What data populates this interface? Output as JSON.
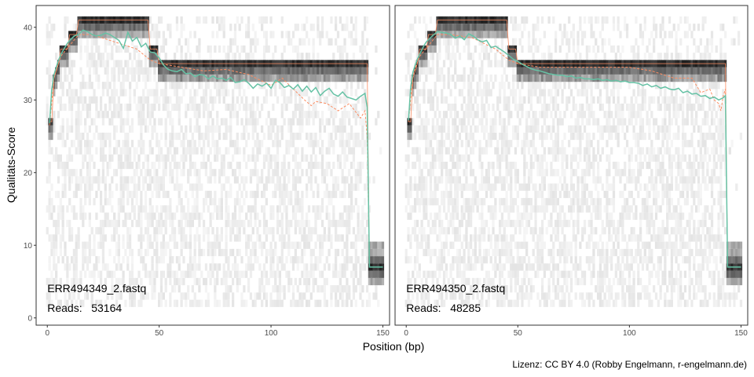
{
  "chart_data": {
    "type": "heatmap",
    "xlabel": "Position (bp)",
    "ylabel": "Qualitäts-Score",
    "xlim": [
      -5,
      153
    ],
    "ylim": [
      -1,
      43
    ],
    "x_ticks": [
      0,
      50,
      100,
      150
    ],
    "y_ticks": [
      0,
      10,
      20,
      30,
      40
    ],
    "grid": false,
    "caption": "Lizenz: CC BY 4.0 (Robby Engelmann, r-engelmann.de)",
    "colors": {
      "mean": "#66c2a5",
      "quantile": "#fc8d62",
      "heat_high": "#1a1a1a",
      "heat_low": "#f2f2f2",
      "frame": "#333333"
    },
    "panels": [
      {
        "file": "ERR494349_2.fastq",
        "reads_label": "Reads:",
        "reads": "53164",
        "mean_quality": [
          [
            1,
            26.8
          ],
          [
            2,
            31.5
          ],
          [
            3,
            33.5
          ],
          [
            4,
            34.5
          ],
          [
            5,
            35.5
          ],
          [
            6,
            36.2
          ],
          [
            7,
            36.8
          ],
          [
            8,
            37.3
          ],
          [
            9,
            37.8
          ],
          [
            10,
            38.2
          ],
          [
            12,
            38.8
          ],
          [
            14,
            39.0
          ],
          [
            16,
            39.6
          ],
          [
            18,
            39.4
          ],
          [
            20,
            39.0
          ],
          [
            22,
            38.8
          ],
          [
            24,
            38.9
          ],
          [
            26,
            39.2
          ],
          [
            28,
            39.0
          ],
          [
            30,
            38.6
          ],
          [
            32,
            38.2
          ],
          [
            34,
            37.1
          ],
          [
            36,
            39.3
          ],
          [
            38,
            38.1
          ],
          [
            40,
            38.6
          ],
          [
            42,
            37.3
          ],
          [
            44,
            37.8
          ],
          [
            46,
            36.6
          ],
          [
            48,
            36.5
          ],
          [
            50,
            35.8
          ],
          [
            52,
            34.8
          ],
          [
            54,
            34.2
          ],
          [
            56,
            34.0
          ],
          [
            58,
            33.9
          ],
          [
            60,
            34.2
          ],
          [
            62,
            33.6
          ],
          [
            64,
            33.7
          ],
          [
            66,
            33.2
          ],
          [
            68,
            33.5
          ],
          [
            70,
            33.4
          ],
          [
            72,
            32.9
          ],
          [
            74,
            33.3
          ],
          [
            76,
            32.9
          ],
          [
            78,
            33.0
          ],
          [
            80,
            32.7
          ],
          [
            82,
            33.1
          ],
          [
            84,
            32.4
          ],
          [
            86,
            32.5
          ],
          [
            88,
            32.8
          ],
          [
            90,
            32.3
          ],
          [
            92,
            31.6
          ],
          [
            94,
            32.2
          ],
          [
            96,
            31.9
          ],
          [
            98,
            32.3
          ],
          [
            100,
            31.6
          ],
          [
            102,
            32.7
          ],
          [
            104,
            32.4
          ],
          [
            106,
            31.7
          ],
          [
            108,
            32.0
          ],
          [
            110,
            31.5
          ],
          [
            112,
            32.1
          ],
          [
            114,
            31.2
          ],
          [
            116,
            31.9
          ],
          [
            118,
            31.1
          ],
          [
            120,
            31.7
          ],
          [
            122,
            30.6
          ],
          [
            124,
            31.2
          ],
          [
            126,
            31.6
          ],
          [
            128,
            30.8
          ],
          [
            130,
            30.5
          ],
          [
            132,
            31.1
          ],
          [
            134,
            30.4
          ],
          [
            136,
            30.2
          ],
          [
            138,
            30.0
          ],
          [
            140,
            30.5
          ],
          [
            142,
            30.9
          ],
          [
            143,
            29.0
          ],
          [
            144,
            7.0
          ],
          [
            148,
            7.0
          ],
          [
            150,
            7.0
          ]
        ],
        "q25_quality": [
          [
            1,
            26.5
          ],
          [
            3,
            33.0
          ],
          [
            6,
            36.0
          ],
          [
            10,
            37.5
          ],
          [
            14,
            39.0
          ],
          [
            20,
            39.0
          ],
          [
            30,
            38.0
          ],
          [
            40,
            37.0
          ],
          [
            46,
            35.5
          ],
          [
            50,
            35.0
          ],
          [
            60,
            34.5
          ],
          [
            70,
            34.0
          ],
          [
            80,
            34.2
          ],
          [
            90,
            33.5
          ],
          [
            100,
            32.0
          ],
          [
            105,
            33.0
          ],
          [
            110,
            31.5
          ],
          [
            115,
            30.0
          ],
          [
            118,
            29.2
          ],
          [
            120,
            29.8
          ],
          [
            125,
            29.5
          ],
          [
            130,
            28.5
          ],
          [
            135,
            29.5
          ],
          [
            140,
            27.5
          ],
          [
            142,
            28.5
          ],
          [
            143,
            25.0
          ],
          [
            144,
            7.0
          ],
          [
            150,
            7.0
          ]
        ]
      },
      {
        "file": "ERR494350_2.fastq",
        "reads_label": "Reads:",
        "reads": "48285",
        "mean_quality": [
          [
            1,
            27.2
          ],
          [
            2,
            31.8
          ],
          [
            3,
            33.8
          ],
          [
            4,
            34.8
          ],
          [
            5,
            35.6
          ],
          [
            6,
            36.3
          ],
          [
            7,
            36.9
          ],
          [
            8,
            37.5
          ],
          [
            9,
            38.0
          ],
          [
            10,
            38.3
          ],
          [
            12,
            38.9
          ],
          [
            14,
            39.4
          ],
          [
            16,
            39.3
          ],
          [
            18,
            39.2
          ],
          [
            20,
            39.0
          ],
          [
            22,
            38.5
          ],
          [
            24,
            38.8
          ],
          [
            26,
            38.3
          ],
          [
            28,
            39.1
          ],
          [
            30,
            38.8
          ],
          [
            32,
            38.3
          ],
          [
            34,
            38.0
          ],
          [
            36,
            38.2
          ],
          [
            38,
            37.2
          ],
          [
            40,
            37.4
          ],
          [
            42,
            37.0
          ],
          [
            44,
            36.6
          ],
          [
            46,
            36.1
          ],
          [
            48,
            35.6
          ],
          [
            50,
            35.3
          ],
          [
            52,
            34.9
          ],
          [
            54,
            34.6
          ],
          [
            56,
            34.3
          ],
          [
            58,
            34.1
          ],
          [
            60,
            34.0
          ],
          [
            62,
            33.8
          ],
          [
            64,
            33.6
          ],
          [
            66,
            33.5
          ],
          [
            68,
            33.4
          ],
          [
            70,
            33.4
          ],
          [
            72,
            33.2
          ],
          [
            74,
            33.3
          ],
          [
            76,
            33.0
          ],
          [
            78,
            33.1
          ],
          [
            80,
            32.9
          ],
          [
            82,
            32.9
          ],
          [
            84,
            32.8
          ],
          [
            86,
            32.9
          ],
          [
            88,
            32.7
          ],
          [
            90,
            32.8
          ],
          [
            92,
            32.6
          ],
          [
            94,
            32.7
          ],
          [
            96,
            32.5
          ],
          [
            98,
            32.6
          ],
          [
            100,
            32.4
          ],
          [
            102,
            32.4
          ],
          [
            104,
            32.3
          ],
          [
            106,
            32.0
          ],
          [
            108,
            32.2
          ],
          [
            110,
            31.8
          ],
          [
            112,
            32.0
          ],
          [
            114,
            31.6
          ],
          [
            116,
            31.8
          ],
          [
            118,
            31.5
          ],
          [
            120,
            31.4
          ],
          [
            122,
            31.6
          ],
          [
            124,
            31.0
          ],
          [
            126,
            31.2
          ],
          [
            128,
            30.8
          ],
          [
            130,
            30.9
          ],
          [
            132,
            30.5
          ],
          [
            134,
            30.6
          ],
          [
            136,
            30.2
          ],
          [
            138,
            30.4
          ],
          [
            140,
            30.0
          ],
          [
            142,
            30.3
          ],
          [
            143,
            30.6
          ],
          [
            144,
            7.0
          ],
          [
            148,
            7.0
          ],
          [
            150,
            7.0
          ]
        ],
        "q25_quality": [
          [
            1,
            27.0
          ],
          [
            3,
            33.5
          ],
          [
            6,
            36.0
          ],
          [
            10,
            37.5
          ],
          [
            14,
            39.0
          ],
          [
            20,
            39.0
          ],
          [
            30,
            38.5
          ],
          [
            40,
            37.0
          ],
          [
            46,
            35.5
          ],
          [
            50,
            35.0
          ],
          [
            60,
            34.5
          ],
          [
            70,
            34.5
          ],
          [
            80,
            34.5
          ],
          [
            90,
            34.5
          ],
          [
            100,
            34.5
          ],
          [
            110,
            34.0
          ],
          [
            120,
            33.0
          ],
          [
            128,
            33.0
          ],
          [
            132,
            31.0
          ],
          [
            136,
            31.5
          ],
          [
            138,
            30.0
          ],
          [
            140,
            29.5
          ],
          [
            141,
            28.5
          ],
          [
            142,
            30.5
          ],
          [
            143,
            31.5
          ],
          [
            144,
            7.0
          ],
          [
            150,
            7.0
          ]
        ]
      }
    ]
  }
}
